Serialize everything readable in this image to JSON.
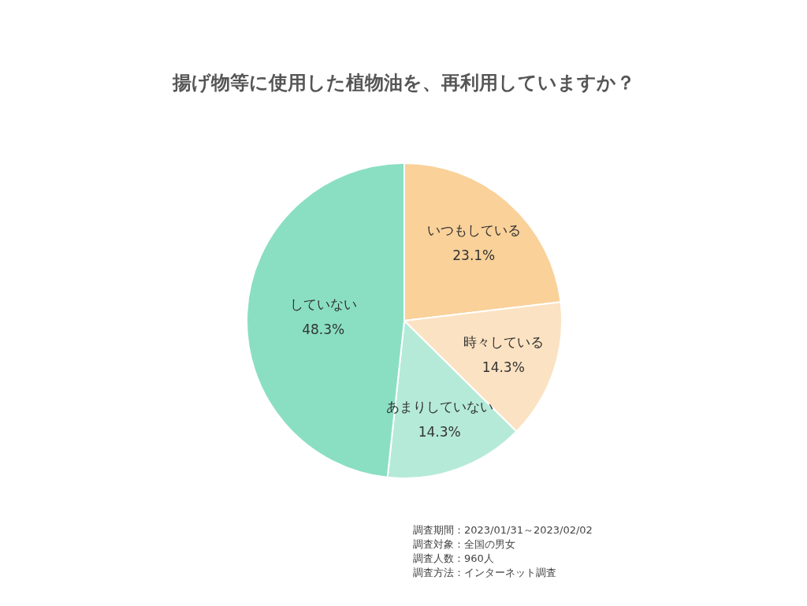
{
  "chart_data": {
    "type": "pie",
    "title": "揚げ物等に使用した植物油を、再利用していますか？",
    "categories": [
      "いつもしている",
      "時々している",
      "あまりしていない",
      "していない"
    ],
    "values": [
      23.1,
      14.3,
      14.3,
      48.3
    ],
    "colors": [
      "#f9d199",
      "#fbe2c2",
      "#b5ead8",
      "#8adfc2"
    ],
    "value_labels": [
      "23.1%",
      "14.3%",
      "14.3%",
      "48.3%"
    ],
    "legend": false,
    "annotations": [
      "調査期間：2023/01/31～2023/02/02",
      "調査対象：全国の男女",
      "調査人数：960人",
      "調査方法：インターネット調査"
    ]
  }
}
